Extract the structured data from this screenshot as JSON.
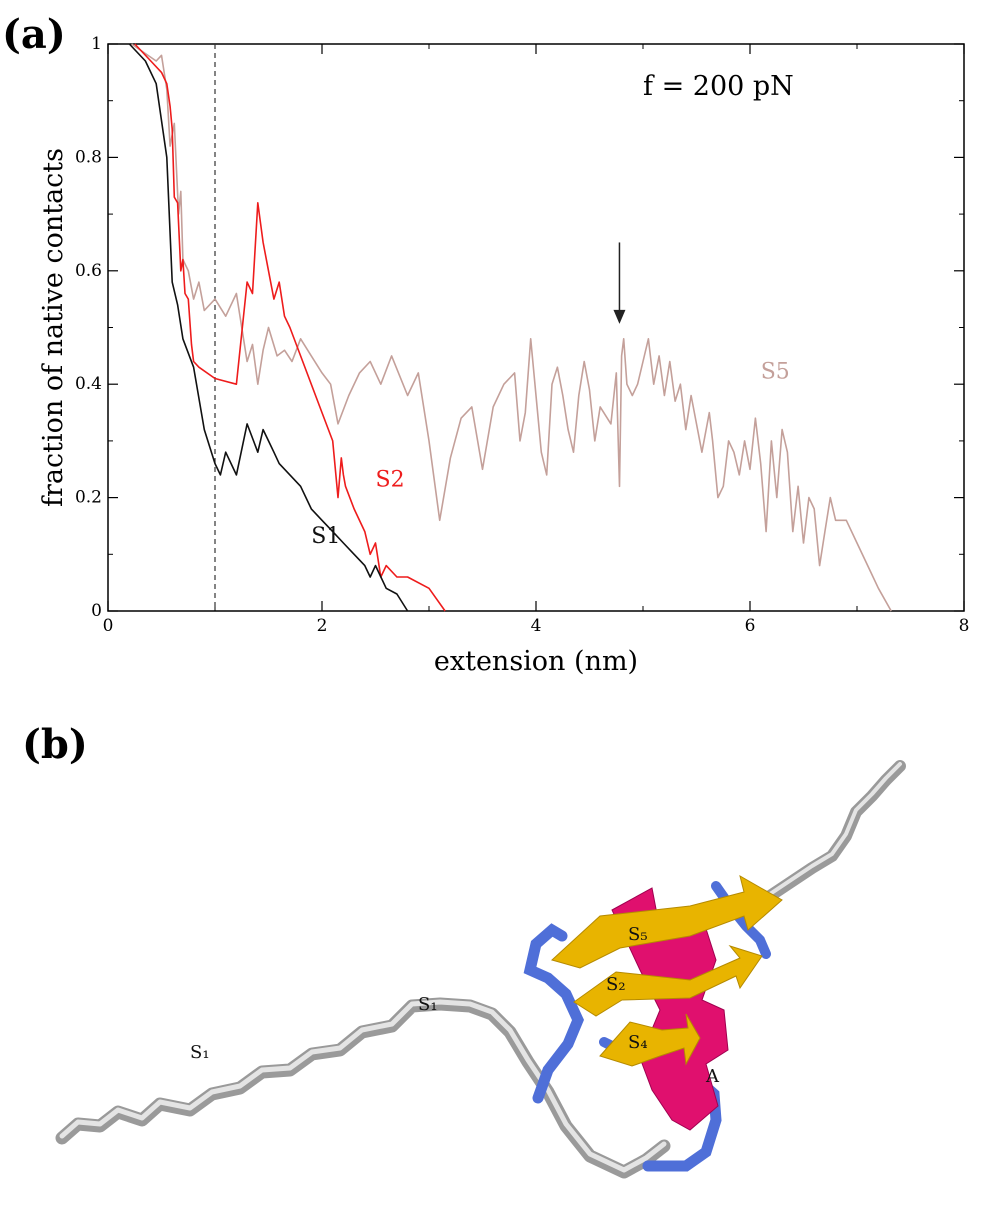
{
  "panel_a_label": "(a)",
  "panel_b_label": "(b)",
  "chart_data": {
    "type": "line",
    "title": "",
    "annotation": "f = 200 pN",
    "xlabel": "extension (nm)",
    "ylabel": "fraction of native contacts",
    "xlim": [
      0,
      8
    ],
    "ylim": [
      0,
      1
    ],
    "xticks": [
      0,
      2,
      4,
      6,
      8
    ],
    "yticks": [
      0,
      0.2,
      0.4,
      0.6,
      0.8,
      1
    ],
    "xtick_labels": [
      "0",
      "2",
      "4",
      "6",
      "8"
    ],
    "ytick_labels": [
      "0",
      "0.2",
      "0.4",
      "0.6",
      "0.8",
      "1"
    ],
    "grid": false,
    "reference_line_x": 1.0,
    "arrow": {
      "x": 4.78,
      "y_from": 0.65,
      "y_to": 0.51
    },
    "series": [
      {
        "name": "S5",
        "color": "#c4a09a",
        "label_pos": [
          6.1,
          0.41
        ],
        "x": [
          0.22,
          0.45,
          0.5,
          0.55,
          0.58,
          0.62,
          0.66,
          0.68,
          0.7,
          0.75,
          0.8,
          0.85,
          0.9,
          1.0,
          1.1,
          1.2,
          1.3,
          1.35,
          1.4,
          1.45,
          1.5,
          1.58,
          1.65,
          1.72,
          1.8,
          1.9,
          2.0,
          2.08,
          2.15,
          2.25,
          2.35,
          2.45,
          2.55,
          2.65,
          2.8,
          2.9,
          3.0,
          3.1,
          3.2,
          3.3,
          3.4,
          3.5,
          3.6,
          3.7,
          3.8,
          3.85,
          3.9,
          3.95,
          4.0,
          4.05,
          4.1,
          4.15,
          4.2,
          4.25,
          4.3,
          4.35,
          4.4,
          4.45,
          4.5,
          4.55,
          4.6,
          4.7,
          4.75,
          4.78,
          4.8,
          4.82,
          4.85,
          4.9,
          4.95,
          5.0,
          5.05,
          5.1,
          5.15,
          5.2,
          5.25,
          5.3,
          5.35,
          5.4,
          5.45,
          5.5,
          5.55,
          5.6,
          5.62,
          5.65,
          5.7,
          5.75,
          5.8,
          5.85,
          5.9,
          5.95,
          6.0,
          6.05,
          6.1,
          6.15,
          6.2,
          6.25,
          6.3,
          6.35,
          6.4,
          6.45,
          6.5,
          6.55,
          6.6,
          6.65,
          6.7,
          6.75,
          6.8,
          6.9,
          7.0,
          7.1,
          7.2,
          7.32
        ],
        "y": [
          1.0,
          0.97,
          0.98,
          0.92,
          0.82,
          0.86,
          0.7,
          0.74,
          0.62,
          0.6,
          0.55,
          0.58,
          0.53,
          0.55,
          0.52,
          0.56,
          0.44,
          0.47,
          0.4,
          0.46,
          0.5,
          0.45,
          0.46,
          0.44,
          0.48,
          0.45,
          0.42,
          0.4,
          0.33,
          0.38,
          0.42,
          0.44,
          0.4,
          0.45,
          0.38,
          0.42,
          0.3,
          0.16,
          0.27,
          0.34,
          0.36,
          0.25,
          0.36,
          0.4,
          0.42,
          0.3,
          0.35,
          0.48,
          0.38,
          0.28,
          0.24,
          0.4,
          0.43,
          0.38,
          0.32,
          0.28,
          0.38,
          0.44,
          0.39,
          0.3,
          0.36,
          0.33,
          0.42,
          0.22,
          0.45,
          0.48,
          0.4,
          0.38,
          0.4,
          0.44,
          0.48,
          0.4,
          0.45,
          0.38,
          0.44,
          0.37,
          0.4,
          0.32,
          0.38,
          0.33,
          0.28,
          0.33,
          0.35,
          0.3,
          0.2,
          0.22,
          0.3,
          0.28,
          0.24,
          0.3,
          0.25,
          0.34,
          0.26,
          0.14,
          0.3,
          0.2,
          0.32,
          0.28,
          0.14,
          0.22,
          0.12,
          0.2,
          0.18,
          0.08,
          0.14,
          0.2,
          0.16,
          0.16,
          0.12,
          0.08,
          0.04,
          0.0
        ]
      },
      {
        "name": "S2",
        "color": "#ee1c1c",
        "label_pos": [
          2.5,
          0.22
        ],
        "x": [
          0.25,
          0.4,
          0.5,
          0.55,
          0.58,
          0.6,
          0.62,
          0.65,
          0.68,
          0.7,
          0.72,
          0.75,
          0.78,
          0.8,
          0.85,
          1.0,
          1.2,
          1.3,
          1.35,
          1.4,
          1.45,
          1.5,
          1.55,
          1.6,
          1.65,
          1.7,
          1.8,
          2.0,
          2.1,
          2.15,
          2.18,
          2.2,
          2.22,
          2.3,
          2.4,
          2.45,
          2.5,
          2.55,
          2.6,
          2.7,
          2.8,
          3.0,
          3.15
        ],
        "y": [
          1.0,
          0.97,
          0.95,
          0.93,
          0.89,
          0.85,
          0.73,
          0.72,
          0.6,
          0.62,
          0.56,
          0.55,
          0.47,
          0.44,
          0.43,
          0.41,
          0.4,
          0.58,
          0.56,
          0.72,
          0.65,
          0.6,
          0.55,
          0.58,
          0.52,
          0.5,
          0.45,
          0.35,
          0.3,
          0.2,
          0.27,
          0.24,
          0.22,
          0.18,
          0.14,
          0.1,
          0.12,
          0.06,
          0.08,
          0.06,
          0.06,
          0.04,
          0.0
        ]
      },
      {
        "name": "S1",
        "color": "#111111",
        "label_pos": [
          1.9,
          0.12
        ],
        "x": [
          0.2,
          0.35,
          0.45,
          0.55,
          0.6,
          0.65,
          0.7,
          0.8,
          0.9,
          1.0,
          1.05,
          1.1,
          1.2,
          1.3,
          1.4,
          1.45,
          1.5,
          1.55,
          1.6,
          1.7,
          1.8,
          1.9,
          2.0,
          2.1,
          2.2,
          2.3,
          2.4,
          2.45,
          2.5,
          2.6,
          2.7,
          2.8
        ],
        "y": [
          1.0,
          0.97,
          0.93,
          0.8,
          0.58,
          0.54,
          0.48,
          0.43,
          0.32,
          0.26,
          0.24,
          0.28,
          0.24,
          0.33,
          0.28,
          0.32,
          0.3,
          0.28,
          0.26,
          0.24,
          0.22,
          0.18,
          0.16,
          0.14,
          0.12,
          0.1,
          0.08,
          0.06,
          0.08,
          0.04,
          0.03,
          0.0
        ]
      }
    ]
  },
  "molecule": {
    "labels": [
      "S₁",
      "S₁",
      "S₅",
      "S₂",
      "S₄",
      "A"
    ],
    "colors": {
      "strand": "#e8b400",
      "helix": "#e0106e",
      "loop": "#4f6fd8",
      "coil": "#bdbdbd"
    }
  }
}
